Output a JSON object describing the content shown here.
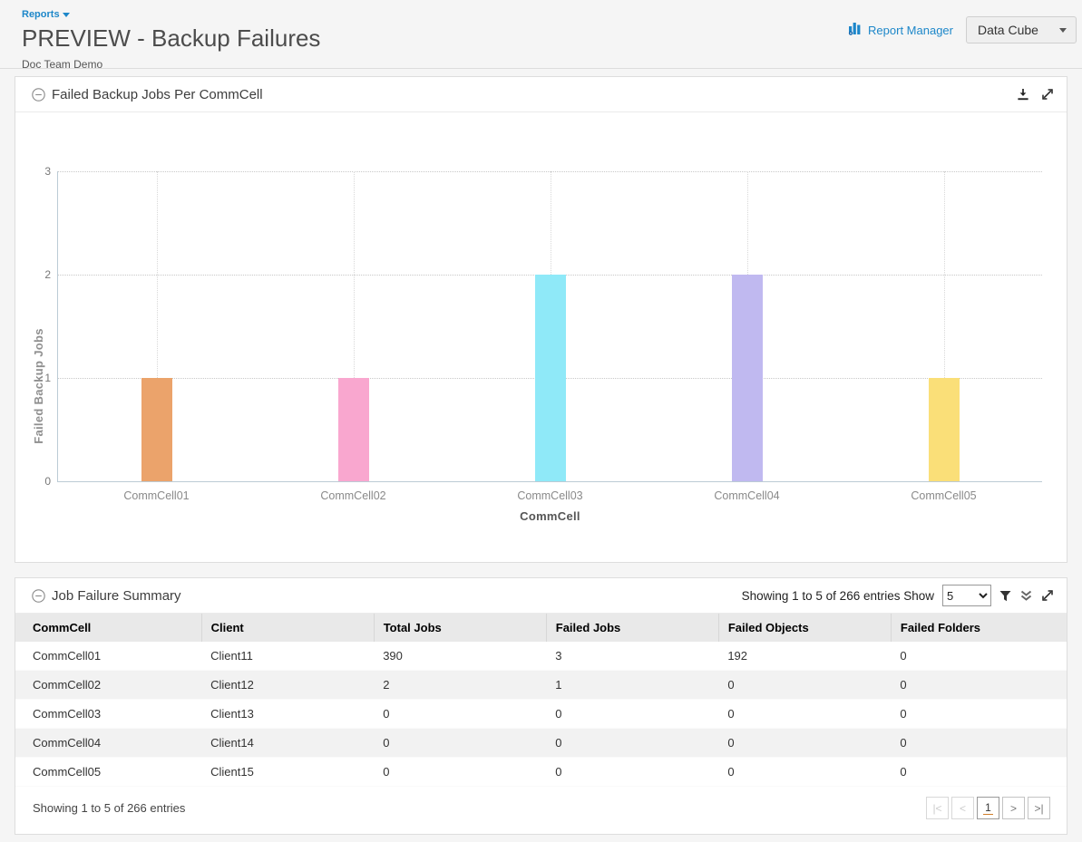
{
  "header": {
    "breadcrumb": "Reports",
    "title": "PREVIEW - Backup Failures",
    "subtitle": "Doc Team Demo",
    "report_manager_label": "Report Manager",
    "data_cube_label": "Data Cube"
  },
  "chart_panel": {
    "title": "Failed Backup Jobs Per CommCell"
  },
  "chart_data": {
    "type": "bar",
    "title": "Failed Backup Jobs Per CommCell",
    "categories": [
      "CommCell01",
      "CommCell02",
      "CommCell03",
      "CommCell04",
      "CommCell05"
    ],
    "values": [
      1,
      1,
      2,
      2,
      1
    ],
    "bar_colors": [
      "#eba36b",
      "#f9a7cf",
      "#8fe9f8",
      "#c0b9f0",
      "#fadf78"
    ],
    "xlabel": "CommCell",
    "ylabel": "Failed Backup Jobs",
    "ylim": [
      0,
      3
    ],
    "yticks": [
      0,
      1,
      2,
      3
    ],
    "grid": "dotted",
    "legend": "none"
  },
  "table_panel": {
    "title": "Job Failure Summary",
    "showing_prefix": "Showing 1 to 5 of 266 entries Show",
    "page_size": "5",
    "columns": [
      "CommCell",
      "Client",
      "Total Jobs",
      "Failed Jobs",
      "Failed Objects",
      "Failed Folders"
    ],
    "rows": [
      [
        "CommCell01",
        "Client11",
        "390",
        "3",
        "192",
        "0"
      ],
      [
        "CommCell02",
        "Client12",
        "2",
        "1",
        "0",
        "0"
      ],
      [
        "CommCell03",
        "Client13",
        "0",
        "0",
        "0",
        "0"
      ],
      [
        "CommCell04",
        "Client14",
        "0",
        "0",
        "0",
        "0"
      ],
      [
        "CommCell05",
        "Client15",
        "0",
        "0",
        "0",
        "0"
      ]
    ],
    "footer_text": "Showing 1 to 5 of 266 entries",
    "pagination": {
      "first": "|<",
      "prev": "<",
      "current": "1",
      "next": ">",
      "last": ">|"
    }
  },
  "colors": {
    "link_blue": "#1d87c9",
    "axis_line": "#bccbd5",
    "table_header_bg": "#e9e9e9",
    "row_alt_bg": "#f2f2f2",
    "page_bg": "#f5f5f5",
    "current_page_underline": "#cf7d29"
  }
}
